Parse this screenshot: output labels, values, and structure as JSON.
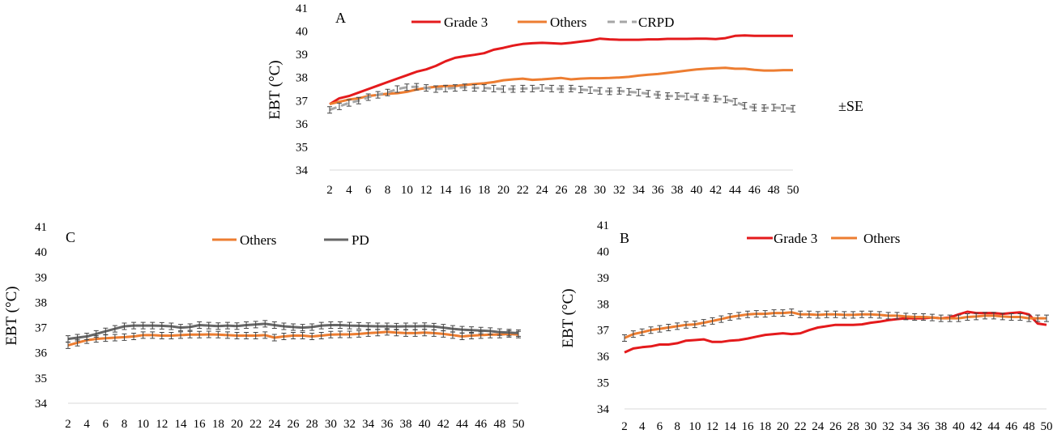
{
  "chart_data": [
    {
      "panel_id": "A",
      "type": "line",
      "ylabel": "EBT (°C)",
      "ylim": [
        34,
        41
      ],
      "yticks": [
        34,
        35,
        36,
        37,
        38,
        39,
        40,
        41
      ],
      "x": [
        2,
        3,
        4,
        5,
        6,
        7,
        8,
        9,
        10,
        11,
        12,
        13,
        14,
        15,
        16,
        17,
        18,
        19,
        20,
        21,
        22,
        23,
        24,
        25,
        26,
        27,
        28,
        29,
        30,
        31,
        32,
        33,
        34,
        35,
        36,
        37,
        38,
        39,
        40,
        41,
        42,
        43,
        44,
        45,
        46,
        47,
        48,
        49,
        50
      ],
      "xticks": [
        2,
        4,
        6,
        8,
        10,
        12,
        14,
        16,
        18,
        20,
        22,
        24,
        26,
        28,
        30,
        32,
        34,
        36,
        38,
        40,
        42,
        44,
        46,
        48,
        50
      ],
      "xlim": [
        2,
        50
      ],
      "error_label": "±SE",
      "legend_position": "top",
      "series": [
        {
          "name": "Grade 3",
          "color": "#e41a1c",
          "dash": "",
          "error_bars": false,
          "values": [
            36.85,
            37.1,
            37.2,
            37.35,
            37.5,
            37.65,
            37.8,
            37.95,
            38.1,
            38.25,
            38.35,
            38.5,
            38.7,
            38.85,
            38.92,
            38.98,
            39.05,
            39.2,
            39.28,
            39.38,
            39.45,
            39.48,
            39.5,
            39.48,
            39.46,
            39.5,
            39.55,
            39.6,
            39.68,
            39.65,
            39.63,
            39.63,
            39.63,
            39.65,
            39.65,
            39.67,
            39.67,
            39.67,
            39.68,
            39.68,
            39.66,
            39.7,
            39.8,
            39.82,
            39.8,
            39.8,
            39.8,
            39.8,
            39.8
          ]
        },
        {
          "name": "Others",
          "color": "#ed7d31",
          "dash": "",
          "error_bars": false,
          "values": [
            36.85,
            36.95,
            37.05,
            37.1,
            37.2,
            37.25,
            37.3,
            37.32,
            37.38,
            37.48,
            37.55,
            37.6,
            37.63,
            37.63,
            37.68,
            37.72,
            37.75,
            37.8,
            37.88,
            37.92,
            37.95,
            37.9,
            37.92,
            37.95,
            37.98,
            37.92,
            37.95,
            37.97,
            37.97,
            37.98,
            38.0,
            38.03,
            38.08,
            38.12,
            38.15,
            38.2,
            38.25,
            38.3,
            38.35,
            38.38,
            38.4,
            38.42,
            38.38,
            38.38,
            38.33,
            38.3,
            38.3,
            38.32,
            38.32
          ]
        },
        {
          "name": "CRPD",
          "color": "#a6a6a6",
          "dash": "9,6",
          "error_bars": true,
          "values": [
            36.6,
            36.75,
            36.9,
            37.0,
            37.15,
            37.25,
            37.35,
            37.5,
            37.58,
            37.6,
            37.55,
            37.5,
            37.52,
            37.55,
            37.58,
            37.55,
            37.55,
            37.52,
            37.5,
            37.5,
            37.52,
            37.52,
            37.55,
            37.52,
            37.5,
            37.52,
            37.48,
            37.45,
            37.42,
            37.4,
            37.42,
            37.38,
            37.35,
            37.3,
            37.25,
            37.2,
            37.2,
            37.18,
            37.15,
            37.12,
            37.08,
            37.05,
            36.95,
            36.78,
            36.7,
            36.68,
            36.7,
            36.68,
            36.65
          ]
        }
      ]
    },
    {
      "panel_id": "C",
      "type": "line",
      "ylabel": "EBT (°C)",
      "ylim": [
        34,
        41
      ],
      "yticks": [
        34,
        35,
        36,
        37,
        38,
        39,
        40,
        41
      ],
      "x": [
        2,
        3,
        4,
        5,
        6,
        7,
        8,
        9,
        10,
        11,
        12,
        13,
        14,
        15,
        16,
        17,
        18,
        19,
        20,
        21,
        22,
        23,
        24,
        25,
        26,
        27,
        28,
        29,
        30,
        31,
        32,
        33,
        34,
        35,
        36,
        37,
        38,
        39,
        40,
        41,
        42,
        43,
        44,
        45,
        46,
        47,
        48,
        49,
        50
      ],
      "xticks": [
        2,
        4,
        6,
        8,
        10,
        12,
        14,
        16,
        18,
        20,
        22,
        24,
        26,
        28,
        30,
        32,
        34,
        36,
        38,
        40,
        42,
        44,
        46,
        48,
        50
      ],
      "xlim": [
        2,
        50
      ],
      "legend_position": "top",
      "series": [
        {
          "name": "Others",
          "color": "#ed7d31",
          "dash": "",
          "error_bars": true,
          "values": [
            36.3,
            36.4,
            36.5,
            36.55,
            36.58,
            36.6,
            36.62,
            36.65,
            36.7,
            36.7,
            36.68,
            36.68,
            36.7,
            36.72,
            36.72,
            36.73,
            36.72,
            36.7,
            36.68,
            36.68,
            36.68,
            36.7,
            36.6,
            36.65,
            36.68,
            36.68,
            36.65,
            36.68,
            36.72,
            36.73,
            36.73,
            36.75,
            36.78,
            36.8,
            36.83,
            36.8,
            36.78,
            36.78,
            36.8,
            36.78,
            36.75,
            36.7,
            36.65,
            36.68,
            36.7,
            36.72,
            36.72,
            36.75,
            36.72
          ]
        },
        {
          "name": "PD",
          "color": "#666666",
          "dash": "",
          "error_bars": true,
          "values": [
            36.55,
            36.6,
            36.65,
            36.75,
            36.85,
            36.95,
            37.05,
            37.08,
            37.08,
            37.08,
            37.07,
            37.05,
            37.0,
            37.02,
            37.1,
            37.08,
            37.06,
            37.08,
            37.06,
            37.1,
            37.12,
            37.15,
            37.1,
            37.05,
            37.02,
            37.0,
            37.02,
            37.08,
            37.1,
            37.1,
            37.08,
            37.07,
            37.06,
            37.05,
            37.05,
            37.04,
            37.05,
            37.05,
            37.06,
            37.04,
            37.0,
            36.95,
            36.92,
            36.9,
            36.88,
            36.86,
            36.82,
            36.8,
            36.78
          ]
        }
      ]
    },
    {
      "panel_id": "B",
      "type": "line",
      "ylabel": "EBT (°C)",
      "ylim": [
        34,
        41
      ],
      "yticks": [
        34,
        35,
        36,
        37,
        38,
        39,
        40,
        41
      ],
      "x": [
        2,
        3,
        4,
        5,
        6,
        7,
        8,
        9,
        10,
        11,
        12,
        13,
        14,
        15,
        16,
        17,
        18,
        19,
        20,
        21,
        22,
        23,
        24,
        25,
        26,
        27,
        28,
        29,
        30,
        31,
        32,
        33,
        34,
        35,
        36,
        37,
        38,
        39,
        40,
        41,
        42,
        43,
        44,
        45,
        46,
        47,
        48,
        49,
        50
      ],
      "xticks": [
        2,
        4,
        6,
        8,
        10,
        12,
        14,
        16,
        18,
        20,
        22,
        24,
        26,
        28,
        30,
        32,
        34,
        36,
        38,
        40,
        42,
        44,
        46,
        48,
        50
      ],
      "xlim": [
        2,
        50
      ],
      "legend_position": "top",
      "series": [
        {
          "name": "Grade 3",
          "color": "#e41a1c",
          "dash": "",
          "error_bars": false,
          "values": [
            36.15,
            36.3,
            36.35,
            36.38,
            36.45,
            36.45,
            36.5,
            36.6,
            36.62,
            36.65,
            36.55,
            36.55,
            36.6,
            36.62,
            36.68,
            36.75,
            36.82,
            36.85,
            36.88,
            36.85,
            36.88,
            37.0,
            37.1,
            37.15,
            37.2,
            37.2,
            37.2,
            37.22,
            37.28,
            37.32,
            37.38,
            37.42,
            37.45,
            37.45,
            37.45,
            37.48,
            37.45,
            37.48,
            37.6,
            37.7,
            37.65,
            37.65,
            37.65,
            37.62,
            37.65,
            37.68,
            37.6,
            37.25,
            37.2
          ]
        },
        {
          "name": "Others",
          "color": "#ed7d31",
          "dash": "",
          "error_bars": true,
          "values": [
            36.7,
            36.85,
            36.92,
            37.0,
            37.05,
            37.1,
            37.15,
            37.2,
            37.22,
            37.28,
            37.35,
            37.42,
            37.5,
            37.55,
            37.6,
            37.62,
            37.62,
            37.65,
            37.65,
            37.68,
            37.6,
            37.6,
            37.58,
            37.6,
            37.6,
            37.58,
            37.58,
            37.6,
            37.6,
            37.58,
            37.55,
            37.55,
            37.52,
            37.5,
            37.5,
            37.48,
            37.45,
            37.45,
            37.45,
            37.5,
            37.52,
            37.55,
            37.55,
            37.52,
            37.5,
            37.5,
            37.45,
            37.45,
            37.45
          ]
        }
      ]
    }
  ]
}
